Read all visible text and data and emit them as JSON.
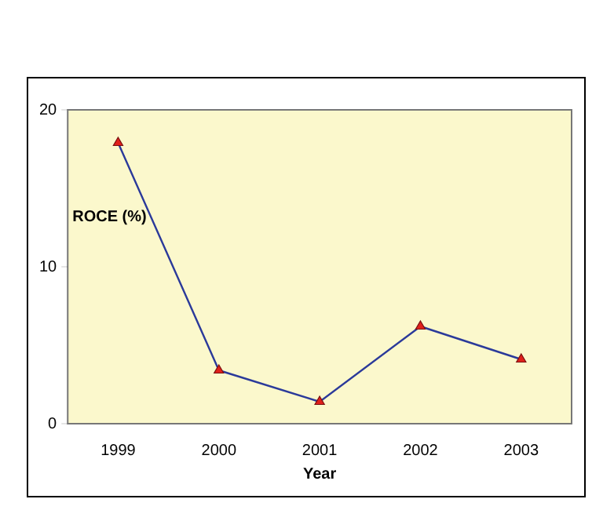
{
  "chart_data": {
    "type": "line",
    "xlabel": "Year",
    "ylabel": "ROCE (%)",
    "categories": [
      "1999",
      "2000",
      "2001",
      "2002",
      "2003"
    ],
    "series": [
      {
        "color": "#2b3a9a",
        "values": [
          17.9,
          3.4,
          1.4,
          6.2,
          4.1
        ]
      }
    ],
    "ylim": [
      0,
      20
    ],
    "yticks": [
      0,
      10,
      20
    ],
    "grid": false,
    "legend": false,
    "marker": "triangle",
    "line_style": "solid"
  }
}
